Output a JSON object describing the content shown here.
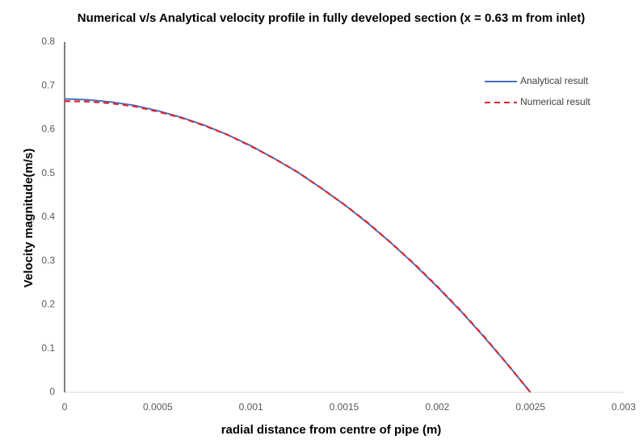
{
  "chart_data": {
    "type": "line",
    "title": "Numerical v/s Analytical velocity profile in fully developed section (x = 0.63 m from inlet)",
    "x_label": "radial distance from centre of pipe (m)",
    "y_label": "Velocity magnitude(m/s)",
    "x": [
      0,
      0.000125,
      0.00025,
      0.000375,
      0.0005,
      0.000625,
      0.00075,
      0.000875,
      0.001,
      0.001125,
      0.00125,
      0.001375,
      0.0015,
      0.001625,
      0.00175,
      0.001875,
      0.002,
      0.002125,
      0.00225,
      0.002375,
      0.0025
    ],
    "series": [
      {
        "name": "Analytical result",
        "color": "#4472c4",
        "dash": false,
        "values": [
          0.67,
          0.668,
          0.663,
          0.655,
          0.643,
          0.628,
          0.61,
          0.588,
          0.563,
          0.534,
          0.503,
          0.467,
          0.429,
          0.387,
          0.342,
          0.293,
          0.241,
          0.186,
          0.127,
          0.065,
          0
        ]
      },
      {
        "name": "Numerical result",
        "color": "#e3242b",
        "dash": true,
        "values": [
          0.665,
          0.664,
          0.66,
          0.653,
          0.641,
          0.627,
          0.609,
          0.588,
          0.562,
          0.534,
          0.503,
          0.467,
          0.429,
          0.388,
          0.342,
          0.294,
          0.242,
          0.187,
          0.128,
          0.065,
          0
        ]
      }
    ],
    "xlim": [
      0,
      0.003
    ],
    "xticks": [
      0,
      0.0005,
      0.001,
      0.0015,
      0.002,
      0.0025,
      0.003
    ],
    "ylim": [
      0,
      0.8
    ],
    "yticks": [
      0,
      0.1,
      0.2,
      0.3,
      0.4,
      0.5,
      0.6,
      0.7,
      0.8
    ],
    "grid": false,
    "legend": "upper-right"
  }
}
